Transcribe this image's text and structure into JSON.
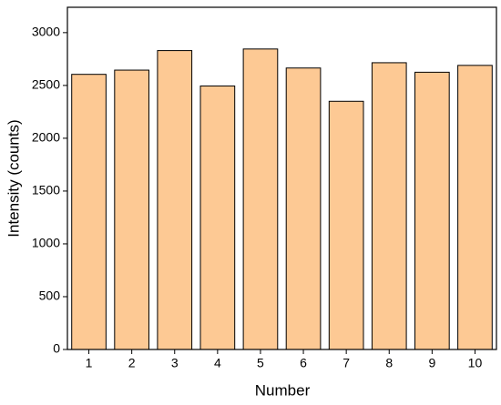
{
  "chart_data": {
    "type": "bar",
    "x_label": "Number",
    "y_label": "Intensity (counts)",
    "categories": [
      "1",
      "2",
      "3",
      "4",
      "5",
      "6",
      "7",
      "8",
      "9",
      "10"
    ],
    "values": [
      2605,
      2645,
      2830,
      2495,
      2845,
      2665,
      2350,
      2715,
      2625,
      2690
    ],
    "color": "#fdc994",
    "edge_color": "#000000",
    "ylim": [
      0,
      3240
    ],
    "yticks": [
      0,
      500,
      1000,
      1500,
      2000,
      2500,
      3000
    ]
  }
}
